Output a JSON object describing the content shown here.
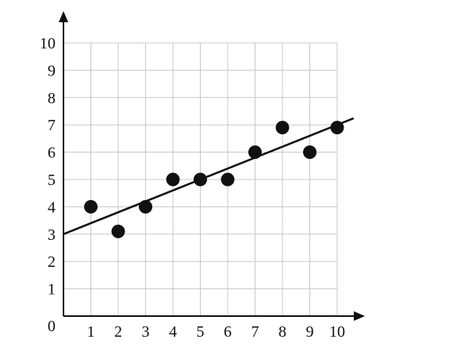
{
  "chart_data": {
    "type": "scatter",
    "title": "",
    "xlabel": "",
    "ylabel": "",
    "xlim": [
      0,
      10
    ],
    "ylim": [
      0,
      10
    ],
    "grid": true,
    "origin_label": "0",
    "x_ticks": [
      "1",
      "2",
      "3",
      "4",
      "5",
      "6",
      "7",
      "8",
      "9",
      "10"
    ],
    "y_ticks": [
      "1",
      "2",
      "3",
      "4",
      "5",
      "6",
      "7",
      "8",
      "9",
      "10"
    ],
    "series": [
      {
        "x": [
          1,
          2,
          3,
          4,
          5,
          6,
          7,
          8,
          9,
          10
        ],
        "y": [
          4.0,
          3.1,
          4.0,
          5.0,
          5.0,
          5.0,
          6.0,
          6.9,
          6.0,
          6.9
        ]
      }
    ],
    "trend_line": {
      "intercept": 3.0,
      "slope": 0.4,
      "x_range": [
        0,
        10.6
      ]
    },
    "colors": {
      "points": "#111111",
      "grid": "#c8c8c8",
      "axes": "#111111"
    }
  }
}
